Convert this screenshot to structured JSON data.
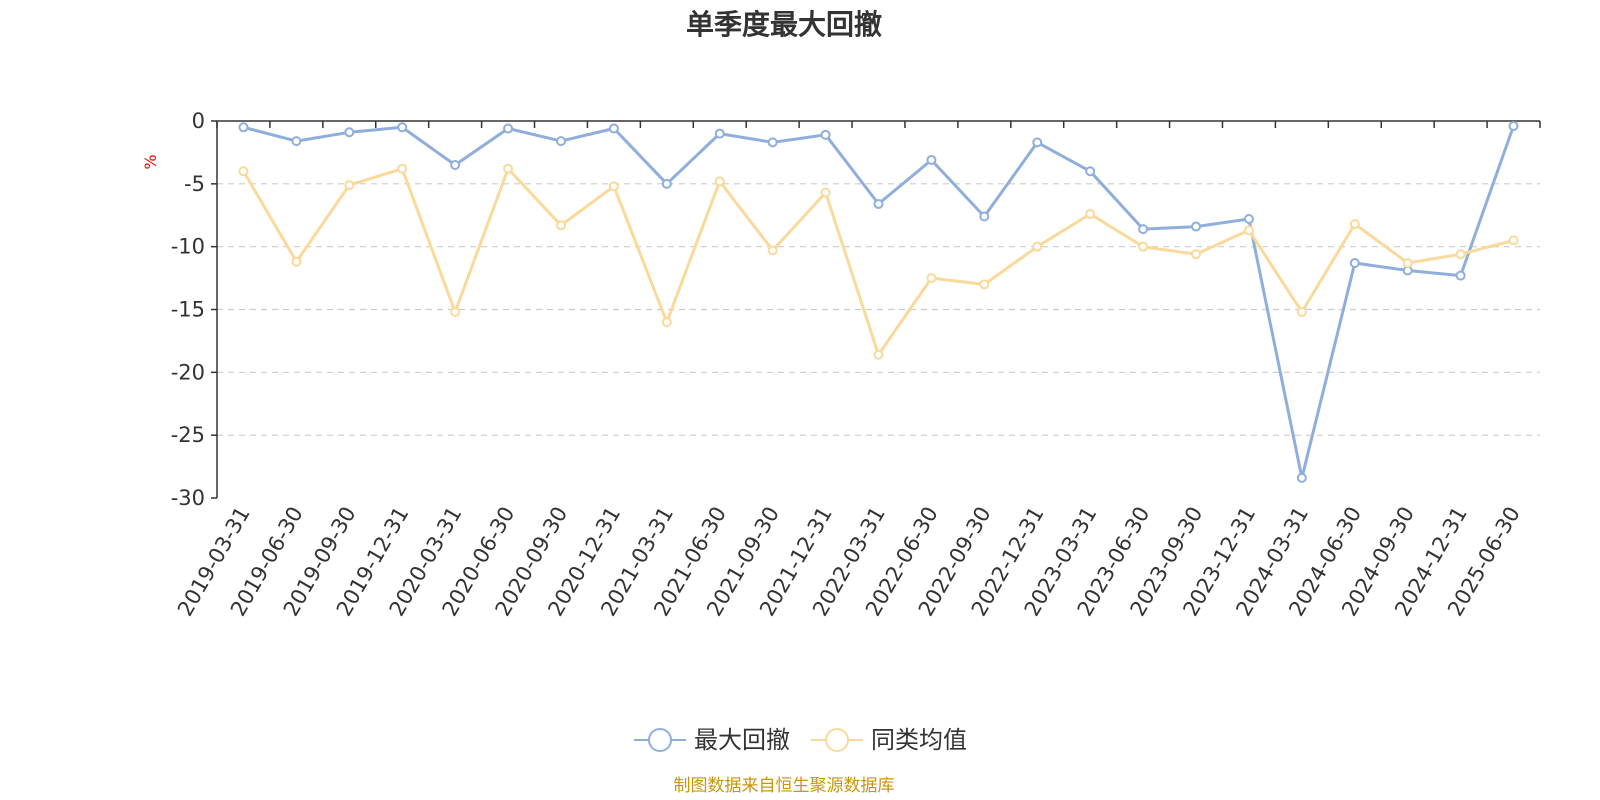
{
  "chart_data": {
    "type": "line",
    "title": "单季度最大回撤",
    "ylabel": "%",
    "xlabel": "",
    "ylim": [
      -30,
      0
    ],
    "yticks": [
      0,
      -5,
      -10,
      -15,
      -20,
      -25,
      -30
    ],
    "grid": true,
    "legend_position": "bottom",
    "categories": [
      "2019-03-31",
      "2019-06-30",
      "2019-09-30",
      "2019-12-31",
      "2020-03-31",
      "2020-06-30",
      "2020-09-30",
      "2020-12-31",
      "2021-03-31",
      "2021-06-30",
      "2021-09-30",
      "2021-12-31",
      "2022-03-31",
      "2022-06-30",
      "2022-09-30",
      "2022-12-31",
      "2023-03-31",
      "2023-06-30",
      "2023-09-30",
      "2023-12-31",
      "2024-03-31",
      "2024-06-30",
      "2024-09-30",
      "2024-12-31",
      "2025-06-30"
    ],
    "series": [
      {
        "name": "最大回撤",
        "color": "#8FAEDB",
        "values": [
          -0.5,
          -1.6,
          -0.9,
          -0.5,
          -3.5,
          -0.6,
          -1.6,
          -0.6,
          -5.0,
          -1.0,
          -1.7,
          -1.1,
          -6.6,
          -3.1,
          -7.6,
          -1.7,
          -4.0,
          -8.6,
          -8.4,
          -7.8,
          -28.4,
          -11.3,
          -11.9,
          -12.3,
          -0.4
        ]
      },
      {
        "name": "同类均值",
        "color": "#FAD99A",
        "values": [
          -4.0,
          -11.2,
          -5.1,
          -3.8,
          -15.2,
          -3.8,
          -8.3,
          -5.2,
          -16.0,
          -4.8,
          -10.3,
          -5.7,
          -18.6,
          -12.5,
          -13.0,
          -10.0,
          -7.4,
          -10.0,
          -10.6,
          -8.7,
          -15.2,
          -8.2,
          -11.3,
          -10.6,
          -9.5
        ]
      }
    ],
    "source_note": "制图数据来自恒生聚源数据库",
    "colors": {
      "axis": "#333333",
      "grid": "#cccccc",
      "unit": "#ff0000",
      "source": "#c8960c"
    }
  }
}
